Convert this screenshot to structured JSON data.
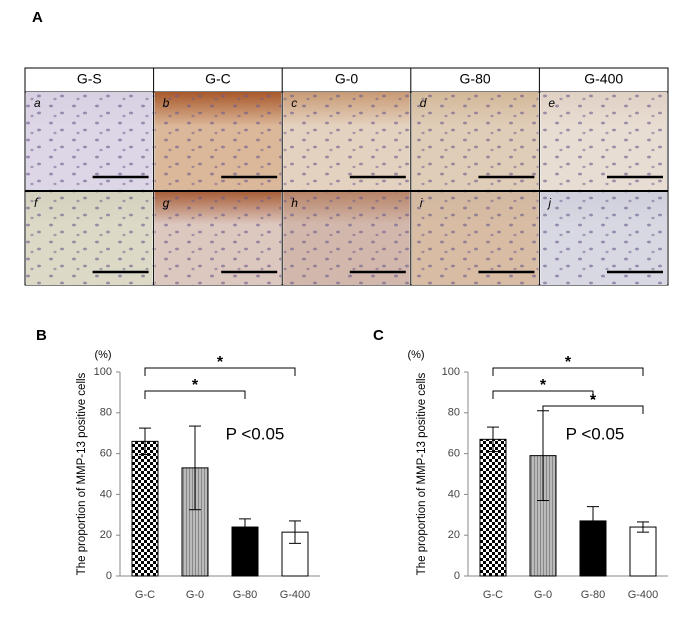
{
  "panel_a": {
    "label": "A",
    "columns": [
      "G-S",
      "G-C",
      "G-0",
      "G-80",
      "G-400"
    ],
    "rows": [
      [
        "a",
        "b",
        "c",
        "d",
        "e"
      ],
      [
        "f",
        "g",
        "h",
        "i",
        "j"
      ]
    ]
  },
  "chart_data": [
    {
      "type": "bar",
      "panel": "B",
      "y_label": "The proportion  of MMP-13 positive cells",
      "y_unit": "(%)",
      "categories": [
        "G-C",
        "G-0",
        "G-80",
        "G-400"
      ],
      "values": [
        66,
        53,
        24,
        21.5
      ],
      "errors": [
        6.5,
        20.5,
        4,
        5.5
      ],
      "fills": [
        "checker",
        "stripes",
        "black",
        "white"
      ],
      "ylim": [
        0,
        100
      ],
      "yticks": [
        0,
        20,
        40,
        60,
        80,
        100
      ],
      "annotation": "P <0.05",
      "significance": [
        {
          "from": 0,
          "to": 3,
          "label": "*"
        },
        {
          "from": 0,
          "to": 2,
          "label": "*"
        }
      ]
    },
    {
      "type": "bar",
      "panel": "C",
      "y_label": "The proportion  of MMP-13 positive cells",
      "y_unit": "(%)",
      "categories": [
        "G-C",
        "G-0",
        "G-80",
        "G-400"
      ],
      "values": [
        67,
        59,
        27,
        24
      ],
      "errors": [
        6,
        22,
        7,
        2.5
      ],
      "fills": [
        "checker",
        "stripes",
        "black",
        "white"
      ],
      "ylim": [
        0,
        100
      ],
      "yticks": [
        0,
        20,
        40,
        60,
        80,
        100
      ],
      "annotation": "P <0.05",
      "significance": [
        {
          "from": 0,
          "to": 3,
          "label": "*"
        },
        {
          "from": 0,
          "to": 2,
          "label": "*"
        },
        {
          "from": 1,
          "to": 3,
          "label": "*"
        }
      ]
    }
  ]
}
